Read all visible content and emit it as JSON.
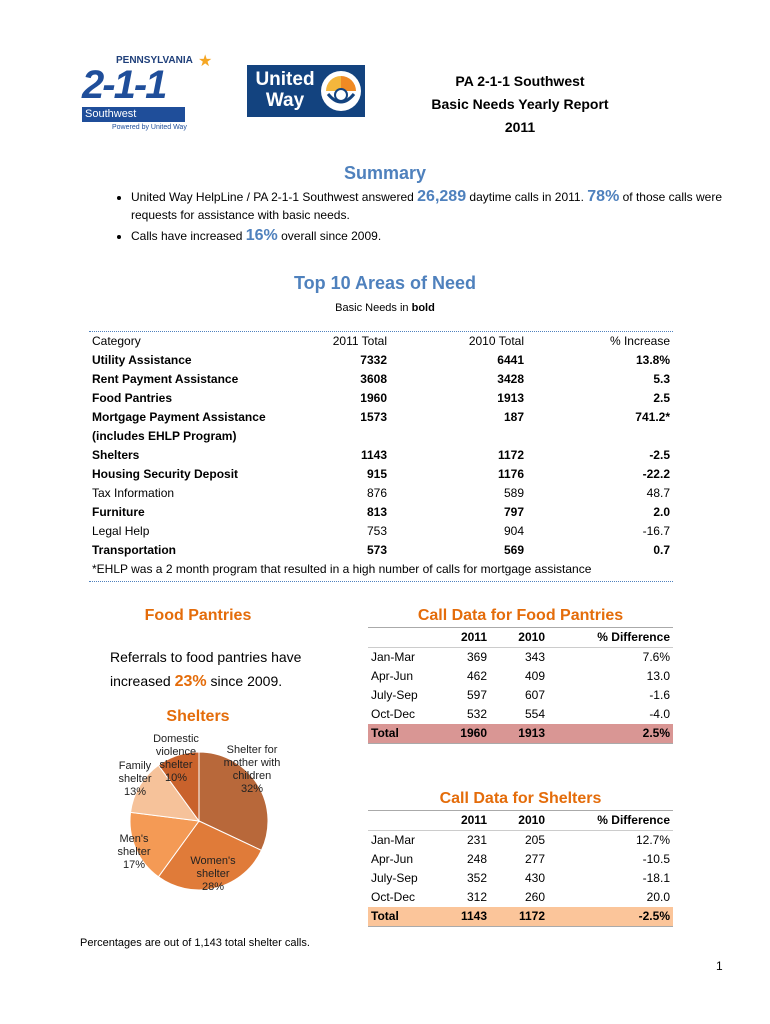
{
  "logos": {
    "pa211": {
      "state": "PENNSYLVANIA",
      "number": "2-1-1",
      "region": "Southwest",
      "tagline": "Powered by United Way"
    },
    "united_way": [
      "United",
      "Way"
    ]
  },
  "header": {
    "lines": [
      "PA 2-1-1 Southwest",
      "Basic Needs Yearly Report",
      "2011"
    ]
  },
  "summary": {
    "heading": "Summary",
    "bullets": [
      [
        "United Way HelpLine / PA 2-1-1 Southwest answered ",
        "26,289",
        " daytime calls in 2011. ",
        "78%",
        " of those calls were requests for assistance with basic needs."
      ],
      [
        "Calls have increased ",
        "16%",
        " overall since 2009."
      ]
    ]
  },
  "top_needs": {
    "heading": "Top 10 Areas of Need",
    "subtitle": [
      "Basic Needs in ",
      "bold"
    ],
    "columns": [
      "Category",
      "2011 Total",
      "2010 Total",
      "% Increase"
    ],
    "rows": [
      {
        "cells": [
          "Utility Assistance",
          "7332",
          "6441",
          "13.8%"
        ],
        "bold": true
      },
      {
        "cells": [
          "Rent Payment Assistance",
          "3608",
          "3428",
          "5.3"
        ],
        "bold": true
      },
      {
        "cells": [
          "Food Pantries",
          "1960",
          "1913",
          "2.5"
        ],
        "bold": true
      },
      {
        "cells": [
          "Mortgage Payment Assistance (includes EHLP Program)",
          "1573",
          "187",
          "741.2*"
        ],
        "bold": true
      },
      {
        "cells": [
          "Shelters",
          "1143",
          "1172",
          "-2.5"
        ],
        "bold": true
      },
      {
        "cells": [
          "Housing Security Deposit",
          "915",
          "1176",
          "-22.2"
        ],
        "bold": true
      },
      {
        "cells": [
          "Tax Information",
          "876",
          "589",
          "48.7"
        ],
        "bold": false
      },
      {
        "cells": [
          "Furniture",
          "813",
          "797",
          "2.0"
        ],
        "bold": true
      },
      {
        "cells": [
          "Legal Help",
          "753",
          "904",
          "-16.7"
        ],
        "bold": false
      },
      {
        "cells": [
          "Transportation",
          "573",
          "569",
          "0.7"
        ],
        "bold": true
      }
    ],
    "footnote": "*EHLP was a 2 month program that resulted in a high number of calls for mortgage assistance"
  },
  "food_pantries": {
    "heading": "Food Pantries",
    "text": [
      "Referrals to food pantries have increased ",
      "23%",
      " since 2009."
    ]
  },
  "shelters": {
    "heading": "Shelters",
    "chart": {
      "type": "pie",
      "categories": [
        "Shelter for mother with children",
        "Women's shelter",
        "Men's shelter",
        "Family shelter",
        "Domestic violence shelter"
      ],
      "values": [
        32,
        28,
        17,
        13,
        10
      ],
      "value_labels": [
        "32%",
        "28%",
        "17%",
        "13%",
        "10%"
      ],
      "colors": [
        "#b8683a",
        "#e07b39",
        "#f49a55",
        "#f6c29a",
        "#c9622c"
      ]
    },
    "footnote": "Percentages are out of 1,143 total shelter calls."
  },
  "food_call_data": {
    "heading": "Call Data for Food Pantries",
    "columns": [
      "2011",
      "2010",
      "% Difference"
    ],
    "rows": [
      [
        "Jan-Mar",
        "369",
        "343",
        "7.6%"
      ],
      [
        "Apr-Jun",
        "462",
        "409",
        "13.0"
      ],
      [
        "July-Sep",
        "597",
        "607",
        "-1.6"
      ],
      [
        "Oct-Dec",
        "532",
        "554",
        "-4.0"
      ]
    ],
    "total": [
      "Total",
      "1960",
      "1913",
      "2.5%"
    ],
    "total_color": "#d99694"
  },
  "shelter_call_data": {
    "heading": "Call Data for Shelters",
    "columns": [
      "2011",
      "2010",
      "% Difference"
    ],
    "rows": [
      [
        "Jan-Mar",
        "231",
        "205",
        "12.7%"
      ],
      [
        "Apr-Jun",
        "248",
        "277",
        "-10.5"
      ],
      [
        "July-Sep",
        "352",
        "430",
        "-18.1"
      ],
      [
        "Oct-Dec",
        "312",
        "260",
        "20.0"
      ]
    ],
    "total": [
      "Total",
      "1143",
      "1172",
      "-2.5%"
    ],
    "total_color": "#fbc59a"
  },
  "page_number": "1"
}
